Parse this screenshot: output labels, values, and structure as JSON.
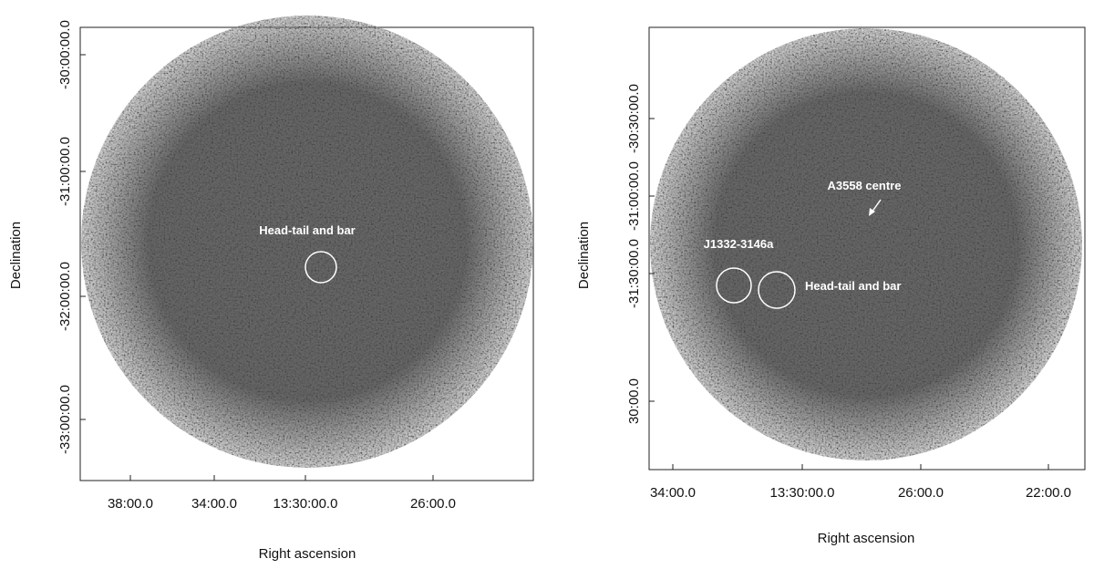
{
  "panels": [
    {
      "x_label": "Right ascension",
      "y_label": "Declination",
      "x_ticks": [
        "38:00.0",
        "34:00.0",
        "13:30:00.0",
        "26:00.0"
      ],
      "y_ticks": [
        "-30:00:00.0",
        "-31:00:00.0",
        "-32:00:00.0",
        "-33:00:00.0"
      ],
      "annotations": [
        "Head-tail and bar"
      ]
    },
    {
      "x_label": "Right ascension",
      "y_label": "Declination",
      "x_ticks": [
        "34:00.0",
        "13:30:00.0",
        "26:00.0",
        "22:00.0"
      ],
      "y_ticks": [
        "-30:30:00.0",
        "-31:00:00.0",
        "-31:30:00.0",
        "30:00.0"
      ],
      "annotations": [
        "A3558 centre",
        "J1332-3146a",
        "Head-tail and bar"
      ]
    }
  ]
}
